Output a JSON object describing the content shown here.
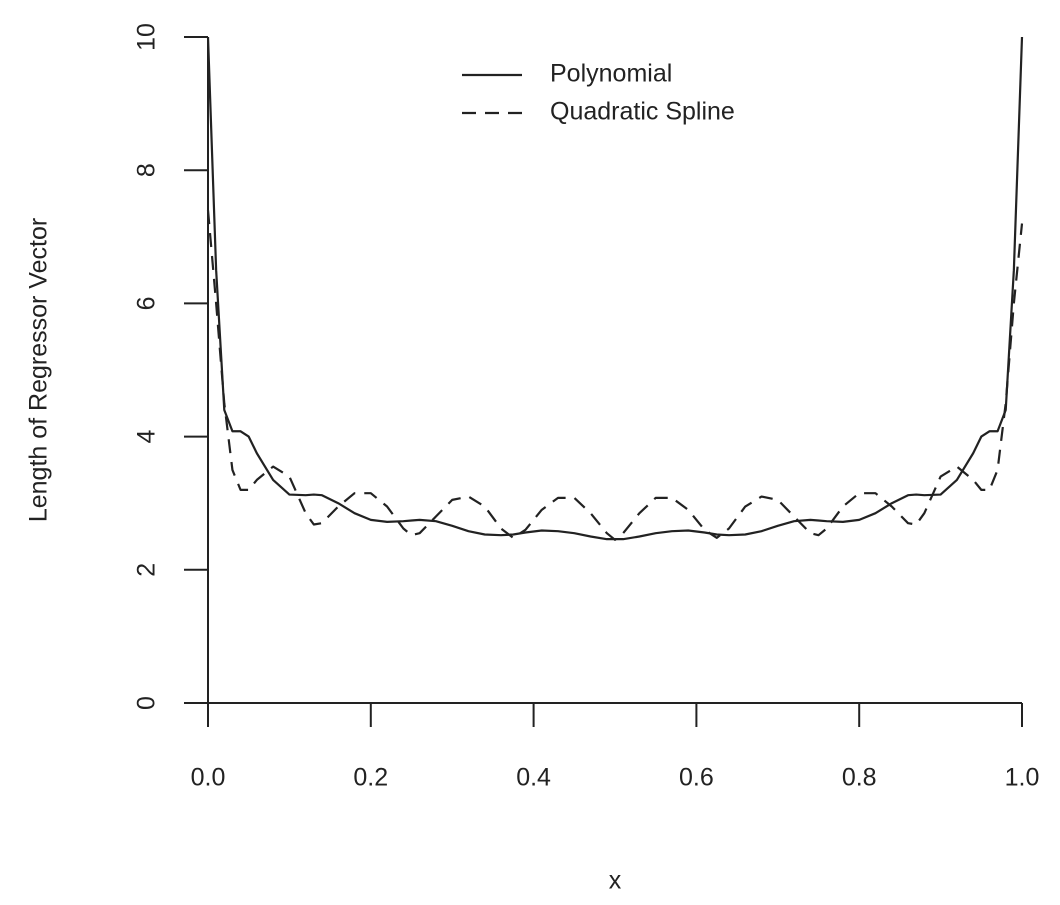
{
  "chart_data": {
    "type": "line",
    "x_label": "x",
    "y_label": "Length of Regressor Vector",
    "x": [
      0,
      0.01,
      0.02,
      0.03,
      0.04,
      0.05,
      0.06,
      0.08,
      0.1,
      0.12,
      0.13,
      0.14,
      0.16,
      0.18,
      0.2,
      0.22,
      0.24,
      0.25,
      0.26,
      0.28,
      0.3,
      0.32,
      0.34,
      0.36,
      0.375,
      0.39,
      0.41,
      0.43,
      0.45,
      0.47,
      0.49,
      0.5,
      0.51,
      0.53,
      0.55,
      0.57,
      0.59,
      0.61,
      0.625,
      0.64,
      0.66,
      0.68,
      0.7,
      0.72,
      0.74,
      0.75,
      0.76,
      0.78,
      0.8,
      0.82,
      0.84,
      0.86,
      0.87,
      0.88,
      0.9,
      0.92,
      0.94,
      0.95,
      0.96,
      0.97,
      0.98,
      0.99,
      1
    ],
    "series": [
      {
        "name": "Polynomial",
        "color": "#222222",
        "line_style": "solid",
        "values": [
          10,
          6.5,
          4.4,
          4.08,
          4.08,
          4.0,
          3.75,
          3.35,
          3.13,
          3.12,
          3.13,
          3.12,
          3.0,
          2.85,
          2.75,
          2.72,
          2.73,
          2.74,
          2.75,
          2.73,
          2.66,
          2.58,
          2.53,
          2.52,
          2.53,
          2.56,
          2.59,
          2.58,
          2.55,
          2.5,
          2.46,
          2.46,
          2.46,
          2.5,
          2.55,
          2.58,
          2.59,
          2.56,
          2.53,
          2.52,
          2.53,
          2.58,
          2.66,
          2.73,
          2.75,
          2.74,
          2.73,
          2.72,
          2.75,
          2.85,
          3.0,
          3.12,
          3.13,
          3.12,
          3.13,
          3.35,
          3.75,
          4.0,
          4.08,
          4.08,
          4.4,
          6.5,
          10
        ]
      },
      {
        "name": "Quadratic Spline",
        "color": "#222222",
        "line_style": "dashed",
        "values": [
          7.4,
          6.0,
          4.5,
          3.5,
          3.2,
          3.2,
          3.35,
          3.55,
          3.4,
          2.85,
          2.68,
          2.7,
          2.95,
          3.15,
          3.15,
          2.95,
          2.62,
          2.52,
          2.55,
          2.8,
          3.05,
          3.1,
          2.95,
          2.62,
          2.48,
          2.6,
          2.9,
          3.08,
          3.08,
          2.85,
          2.55,
          2.45,
          2.55,
          2.85,
          3.08,
          3.08,
          2.9,
          2.6,
          2.48,
          2.62,
          2.95,
          3.1,
          3.05,
          2.8,
          2.55,
          2.52,
          2.62,
          2.95,
          3.15,
          3.15,
          2.95,
          2.7,
          2.68,
          2.85,
          3.4,
          3.55,
          3.35,
          3.2,
          3.2,
          3.5,
          4.5,
          6.0,
          7.2
        ]
      }
    ],
    "xlim": [
      0,
      1
    ],
    "ylim": [
      0,
      10
    ],
    "xticks": [
      {
        "value": 0,
        "label": "0.0"
      },
      {
        "value": 0.2,
        "label": "0.2"
      },
      {
        "value": 0.4,
        "label": "0.4"
      },
      {
        "value": 0.6,
        "label": "0.6"
      },
      {
        "value": 0.8,
        "label": "0.8"
      },
      {
        "value": 1,
        "label": "1.0"
      }
    ],
    "yticks": [
      0,
      2,
      4,
      6,
      8,
      10
    ],
    "grid": false,
    "legend": "top"
  }
}
